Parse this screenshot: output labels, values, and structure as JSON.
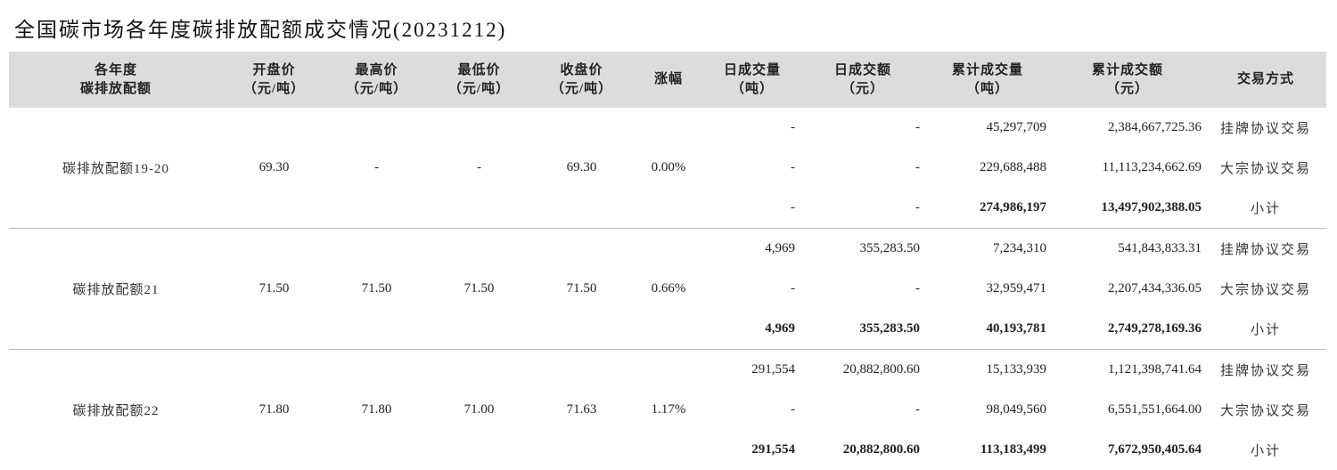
{
  "title": "全国碳市场各年度碳排放配额成交情况(20231212)",
  "headers": [
    {
      "l1": "各年度",
      "l2": "碳排放配额"
    },
    {
      "l1": "开盘价",
      "l2": "（元/吨）"
    },
    {
      "l1": "最高价",
      "l2": "（元/吨）"
    },
    {
      "l1": "最低价",
      "l2": "（元/吨）"
    },
    {
      "l1": "收盘价",
      "l2": "（元/吨）"
    },
    {
      "l1": "涨幅",
      "l2": ""
    },
    {
      "l1": "日成交量",
      "l2": "（吨）"
    },
    {
      "l1": "日成交额",
      "l2": "（元）"
    },
    {
      "l1": "累计成交量",
      "l2": "（吨）"
    },
    {
      "l1": "累计成交额",
      "l2": "（元）"
    },
    {
      "l1": "交易方式",
      "l2": ""
    }
  ],
  "groups": [
    {
      "name": "碳排放配额19-20",
      "open": "69.30",
      "high": "-",
      "low": "-",
      "close": "69.30",
      "change": "0.00%",
      "rows": [
        {
          "daily_vol": "-",
          "daily_amt": "-",
          "cum_vol": "45,297,709",
          "cum_amt": "2,384,667,725.36",
          "method": "挂牌协议交易"
        },
        {
          "daily_vol": "-",
          "daily_amt": "-",
          "cum_vol": "229,688,488",
          "cum_amt": "11,113,234,662.69",
          "method": "大宗协议交易"
        },
        {
          "daily_vol": "-",
          "daily_amt": "-",
          "cum_vol": "274,986,197",
          "cum_amt": "13,497,902,388.05",
          "method": "小计"
        }
      ]
    },
    {
      "name": "碳排放配额21",
      "open": "71.50",
      "high": "71.50",
      "low": "71.50",
      "close": "71.50",
      "change": "0.66%",
      "rows": [
        {
          "daily_vol": "4,969",
          "daily_amt": "355,283.50",
          "cum_vol": "7,234,310",
          "cum_amt": "541,843,833.31",
          "method": "挂牌协议交易"
        },
        {
          "daily_vol": "-",
          "daily_amt": "-",
          "cum_vol": "32,959,471",
          "cum_amt": "2,207,434,336.05",
          "method": "大宗协议交易"
        },
        {
          "daily_vol": "4,969",
          "daily_amt": "355,283.50",
          "cum_vol": "40,193,781",
          "cum_amt": "2,749,278,169.36",
          "method": "小计"
        }
      ]
    },
    {
      "name": "碳排放配额22",
      "open": "71.80",
      "high": "71.80",
      "low": "71.00",
      "close": "71.63",
      "change": "1.17%",
      "rows": [
        {
          "daily_vol": "291,554",
          "daily_amt": "20,882,800.60",
          "cum_vol": "15,133,939",
          "cum_amt": "1,121,398,741.64",
          "method": "挂牌协议交易"
        },
        {
          "daily_vol": "-",
          "daily_amt": "-",
          "cum_vol": "98,049,560",
          "cum_amt": "6,551,551,664.00",
          "method": "大宗协议交易"
        },
        {
          "daily_vol": "291,554",
          "daily_amt": "20,882,800.60",
          "cum_vol": "113,183,499",
          "cum_amt": "7,672,950,405.64",
          "method": "小计"
        }
      ]
    }
  ]
}
